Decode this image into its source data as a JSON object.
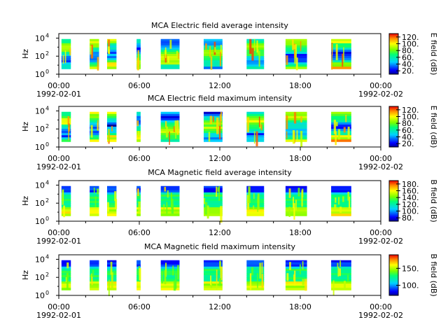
{
  "chart_data": [
    {
      "type": "heatmap",
      "title": "MCA  Electric field average intensity",
      "ylabel": "Hz",
      "colorbar_label": "E field (dB)",
      "colorbar_ticks": [
        "20.",
        "40.",
        "60.",
        "80.",
        "100.",
        "120."
      ],
      "colorbar_range": [
        10,
        130
      ],
      "y_ticks": [
        {
          "base": "10",
          "exp": "0"
        },
        {
          "base": "10",
          "exp": "2"
        },
        {
          "base": "10",
          "exp": "4"
        }
      ],
      "y_range_log10": [
        0,
        4.5
      ],
      "x_ticks": [
        "00:00",
        "06:00",
        "12:00",
        "18:00",
        "00:00"
      ],
      "x_date_labels": [
        "1992-02-01",
        "1992-02-02"
      ],
      "x_range_hours": [
        0,
        24
      ],
      "style": "e",
      "data_blocks_hours": [
        [
          0.2,
          0.9
        ],
        [
          2.3,
          3.0
        ],
        [
          3.6,
          4.3
        ],
        [
          5.8,
          6.1
        ],
        [
          7.6,
          9.0
        ],
        [
          10.8,
          12.2
        ],
        [
          14.0,
          15.3
        ],
        [
          16.9,
          18.5
        ],
        [
          20.3,
          21.8
        ]
      ]
    },
    {
      "type": "heatmap",
      "title": "MCA  Electric field maximum intensity",
      "ylabel": "Hz",
      "colorbar_label": "E field (dB)",
      "colorbar_ticks": [
        "20.",
        "40.",
        "60.",
        "80.",
        "100.",
        "120."
      ],
      "colorbar_range": [
        10,
        130
      ],
      "y_ticks": [
        {
          "base": "10",
          "exp": "0"
        },
        {
          "base": "10",
          "exp": "2"
        },
        {
          "base": "10",
          "exp": "4"
        }
      ],
      "y_range_log10": [
        0,
        4.5
      ],
      "x_ticks": [
        "00:00",
        "06:00",
        "12:00",
        "18:00",
        "00:00"
      ],
      "x_date_labels": [
        "1992-02-01",
        "1992-02-02"
      ],
      "x_range_hours": [
        0,
        24
      ],
      "style": "e",
      "data_blocks_hours": [
        [
          0.2,
          0.9
        ],
        [
          2.3,
          3.0
        ],
        [
          3.6,
          4.3
        ],
        [
          5.8,
          6.1
        ],
        [
          7.6,
          9.0
        ],
        [
          10.8,
          12.2
        ],
        [
          14.0,
          15.3
        ],
        [
          16.9,
          18.5
        ],
        [
          20.3,
          21.8
        ]
      ]
    },
    {
      "type": "heatmap",
      "title": "MCA  Magnetic field average intensity",
      "ylabel": "Hz",
      "colorbar_label": "B field (dB)",
      "colorbar_ticks": [
        "80.",
        "100.",
        "120.",
        "140.",
        "160.",
        "180."
      ],
      "colorbar_range": [
        70,
        190
      ],
      "y_ticks": [
        {
          "base": "10",
          "exp": "0"
        },
        {
          "base": "10",
          "exp": "2"
        },
        {
          "base": "10",
          "exp": "4"
        }
      ],
      "y_range_log10": [
        0,
        4.5
      ],
      "x_ticks": [
        "00:00",
        "06:00",
        "12:00",
        "18:00",
        "00:00"
      ],
      "x_date_labels": [
        "1992-02-01",
        "1992-02-02"
      ],
      "x_range_hours": [
        0,
        24
      ],
      "style": "b",
      "data_blocks_hours": [
        [
          0.2,
          0.9
        ],
        [
          2.3,
          3.0
        ],
        [
          3.6,
          4.3
        ],
        [
          5.8,
          6.1
        ],
        [
          7.6,
          9.0
        ],
        [
          10.8,
          12.2
        ],
        [
          14.0,
          15.3
        ],
        [
          16.9,
          18.5
        ],
        [
          20.3,
          21.8
        ]
      ]
    },
    {
      "type": "heatmap",
      "title": "MCA  Magnetic field maximum intensity",
      "ylabel": "Hz",
      "colorbar_label": "B field (dB)",
      "colorbar_ticks": [
        "100.",
        "150."
      ],
      "colorbar_range": [
        70,
        190
      ],
      "y_ticks": [
        {
          "base": "10",
          "exp": "0"
        },
        {
          "base": "10",
          "exp": "2"
        },
        {
          "base": "10",
          "exp": "4"
        }
      ],
      "y_range_log10": [
        0,
        4.5
      ],
      "x_ticks": [
        "00:00",
        "06:00",
        "12:00",
        "18:00",
        "00:00"
      ],
      "x_date_labels": [
        "1992-02-01",
        "1992-02-02"
      ],
      "x_range_hours": [
        0,
        24
      ],
      "style": "b",
      "data_blocks_hours": [
        [
          0.2,
          0.9
        ],
        [
          2.3,
          3.0
        ],
        [
          3.6,
          4.3
        ],
        [
          5.8,
          6.1
        ],
        [
          7.6,
          9.0
        ],
        [
          10.8,
          12.2
        ],
        [
          14.0,
          15.3
        ],
        [
          16.9,
          18.5
        ],
        [
          20.3,
          21.8
        ]
      ]
    }
  ]
}
